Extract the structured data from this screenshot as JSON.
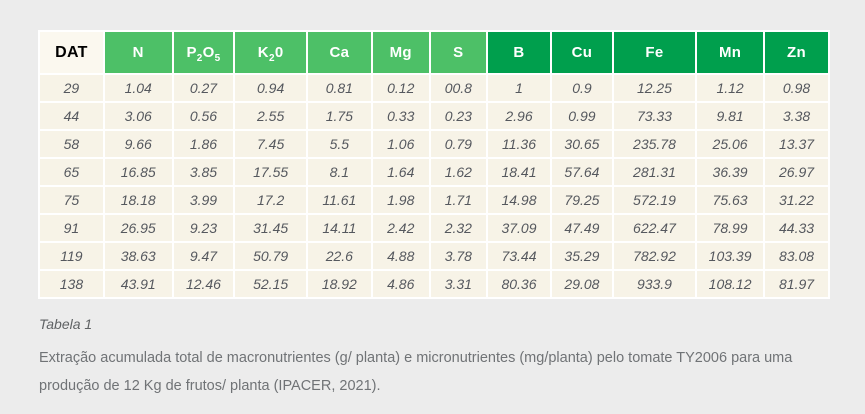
{
  "table": {
    "columns": [
      {
        "key": "DAT",
        "tone": "plain",
        "segments": [
          {
            "t": "DAT"
          }
        ]
      },
      {
        "key": "N",
        "tone": "light",
        "segments": [
          {
            "t": "N"
          }
        ]
      },
      {
        "key": "P2O5",
        "tone": "light",
        "segments": [
          {
            "t": "P"
          },
          {
            "t": "2",
            "sub": true
          },
          {
            "t": "O"
          },
          {
            "t": "5",
            "sub": true
          }
        ]
      },
      {
        "key": "K20",
        "tone": "light",
        "segments": [
          {
            "t": "K"
          },
          {
            "t": "2",
            "sub": true
          },
          {
            "t": "0"
          }
        ]
      },
      {
        "key": "Ca",
        "tone": "light",
        "segments": [
          {
            "t": "Ca"
          }
        ]
      },
      {
        "key": "Mg",
        "tone": "light",
        "segments": [
          {
            "t": "Mg"
          }
        ]
      },
      {
        "key": "S",
        "tone": "light",
        "segments": [
          {
            "t": "S"
          }
        ]
      },
      {
        "key": "B",
        "tone": "dark",
        "segments": [
          {
            "t": "B"
          }
        ]
      },
      {
        "key": "Cu",
        "tone": "dark",
        "segments": [
          {
            "t": "Cu"
          }
        ]
      },
      {
        "key": "Fe",
        "tone": "dark",
        "segments": [
          {
            "t": "Fe"
          }
        ]
      },
      {
        "key": "Mn",
        "tone": "dark",
        "segments": [
          {
            "t": "Mn"
          }
        ]
      },
      {
        "key": "Zn",
        "tone": "dark",
        "segments": [
          {
            "t": "Zn"
          }
        ]
      }
    ],
    "rows": [
      [
        "29",
        "1.04",
        "0.27",
        "0.94",
        "0.81",
        "0.12",
        "00.8",
        "1",
        "0.9",
        "12.25",
        "1.12",
        "0.98"
      ],
      [
        "44",
        "3.06",
        "0.56",
        "2.55",
        "1.75",
        "0.33",
        "0.23",
        "2.96",
        "0.99",
        "73.33",
        "9.81",
        "3.38"
      ],
      [
        "58",
        "9.66",
        "1.86",
        "7.45",
        "5.5",
        "1.06",
        "0.79",
        "11.36",
        "30.65",
        "235.78",
        "25.06",
        "13.37"
      ],
      [
        "65",
        "16.85",
        "3.85",
        "17.55",
        "8.1",
        "1.64",
        "1.62",
        "18.41",
        "57.64",
        "281.31",
        "36.39",
        "26.97"
      ],
      [
        "75",
        "18.18",
        "3.99",
        "17.2",
        "11.61",
        "1.98",
        "1.71",
        "14.98",
        "79.25",
        "572.19",
        "75.63",
        "31.22"
      ],
      [
        "91",
        "26.95",
        "9.23",
        "31.45",
        "14.11",
        "2.42",
        "2.32",
        "37.09",
        "47.49",
        "622.47",
        "78.99",
        "44.33"
      ],
      [
        "119",
        "38.63",
        "9.47",
        "50.79",
        "22.6",
        "4.88",
        "3.78",
        "73.44",
        "35.29",
        "782.92",
        "103.39",
        "83.08"
      ],
      [
        "138",
        "43.91",
        "12.46",
        "52.15",
        "18.92",
        "4.86",
        "3.31",
        "80.36",
        "29.08",
        "933.9",
        "108.12",
        "81.97"
      ]
    ]
  },
  "caption": {
    "label": "Tabela 1",
    "text": "Extração acumulada total de macronutrientes (g/ planta) e micronutrientes (mg/planta) pelo tomate TY2006 para uma produção de 12 Kg de frutos/ planta (IPACER, 2021)."
  },
  "colors": {
    "header_light_green": "#4dc067",
    "header_dark_green": "#009f4d",
    "cell_background": "#f7f3e7",
    "dat_header_background": "#fbf8ef",
    "page_background": "#ececec"
  }
}
